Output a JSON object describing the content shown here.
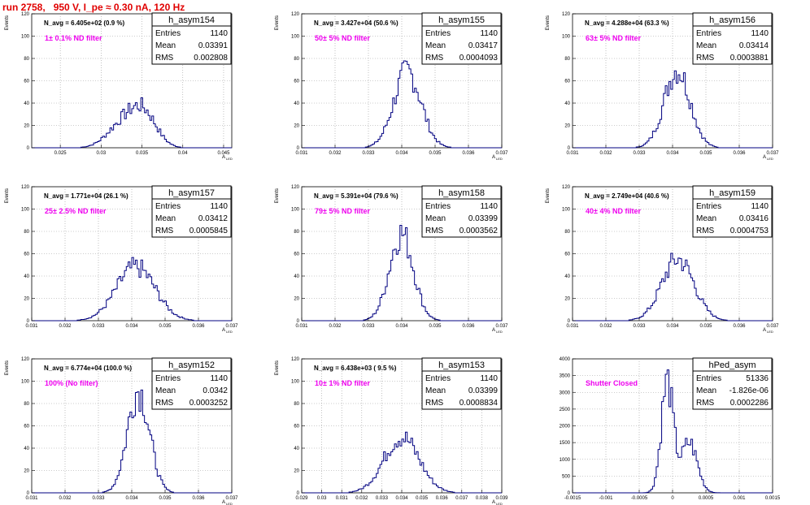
{
  "title": "run 2758,   950 V, I_pe ≈ 0.30 nA, 120 Hz",
  "chart_data": [
    {
      "type": "bar",
      "name": "h_asym154",
      "navg": "N_avg = 6.405e+02 (0.9 %)",
      "note": "1± 0.1% ND filter",
      "entries": "1140",
      "mean": "0.03391",
      "rms": "0.002808",
      "xlabel": "A",
      "xsub": "LED",
      "ylabel": "Events",
      "xlim": [
        0.0215,
        0.046
      ],
      "ylim": [
        0,
        120
      ],
      "xticks": [
        "0.025",
        "0.03",
        "0.035",
        "0.04",
        "0.045"
      ],
      "xtick_values": [
        0.025,
        0.03,
        0.035,
        0.04,
        0.045
      ],
      "yticks": [
        "0",
        "20",
        "40",
        "60",
        "80",
        "100",
        "120"
      ],
      "ytick_values": [
        0,
        20,
        40,
        60,
        80,
        100,
        120
      ],
      "peaks": [
        {
          "mu": 0.0325,
          "sigma": 0.0018,
          "amp": 20
        },
        {
          "mu": 0.0352,
          "sigma": 0.0016,
          "amp": 30
        }
      ],
      "nbins": 110
    },
    {
      "type": "bar",
      "name": "h_asym155",
      "navg": "N_avg = 3.427e+04 (50.6 %)",
      "note": "50± 5% ND filter",
      "entries": "1140",
      "mean": "0.03417",
      "rms": "0.0004093",
      "xlabel": "A",
      "xsub": "LED",
      "ylabel": "Events",
      "xlim": [
        0.031,
        0.037
      ],
      "ylim": [
        0,
        120
      ],
      "xticks": [
        "0.031",
        "0.032",
        "0.033",
        "0.034",
        "0.035",
        "0.036",
        "0.037"
      ],
      "xtick_values": [
        0.031,
        0.032,
        0.033,
        0.034,
        0.035,
        0.036,
        0.037
      ],
      "yticks": [
        "0",
        "20",
        "40",
        "60",
        "80",
        "100",
        "120"
      ],
      "ytick_values": [
        0,
        20,
        40,
        60,
        80,
        100,
        120
      ],
      "peaks": [
        {
          "mu": 0.03417,
          "sigma": 0.00041,
          "amp": 68
        }
      ],
      "nbins": 110
    },
    {
      "type": "bar",
      "name": "h_asym156",
      "navg": "N_avg = 4.288e+04 (63.3 %)",
      "note": "63± 5% ND filter",
      "entries": "1140",
      "mean": "0.03414",
      "rms": "0.0003881",
      "xlabel": "A",
      "xsub": "LED",
      "ylabel": "Events",
      "xlim": [
        0.031,
        0.037
      ],
      "ylim": [
        0,
        120
      ],
      "xticks": [
        "0.031",
        "0.032",
        "0.033",
        "0.034",
        "0.035",
        "0.036",
        "0.037"
      ],
      "xtick_values": [
        0.031,
        0.032,
        0.033,
        0.034,
        0.035,
        0.036,
        0.037
      ],
      "yticks": [
        "0",
        "20",
        "40",
        "60",
        "80",
        "100",
        "120"
      ],
      "ytick_values": [
        0,
        20,
        40,
        60,
        80,
        100,
        120
      ],
      "peaks": [
        {
          "mu": 0.03414,
          "sigma": 0.00039,
          "amp": 70
        }
      ],
      "nbins": 110
    },
    {
      "type": "bar",
      "name": "h_asym157",
      "navg": "N_avg = 1.771e+04 (26.1 %)",
      "note": "25± 2.5% ND filter",
      "entries": "1140",
      "mean": "0.03412",
      "rms": "0.0005845",
      "xlabel": "A",
      "xsub": "LED",
      "ylabel": "Events",
      "xlim": [
        0.031,
        0.037
      ],
      "ylim": [
        0,
        120
      ],
      "xticks": [
        "0.031",
        "0.032",
        "0.033",
        "0.034",
        "0.035",
        "0.036",
        "0.037"
      ],
      "xtick_values": [
        0.031,
        0.032,
        0.033,
        0.034,
        0.035,
        0.036,
        0.037
      ],
      "yticks": [
        "0",
        "20",
        "40",
        "60",
        "80",
        "100",
        "120"
      ],
      "ytick_values": [
        0,
        20,
        40,
        60,
        80,
        100,
        120
      ],
      "peaks": [
        {
          "mu": 0.03412,
          "sigma": 0.00058,
          "amp": 48
        }
      ],
      "nbins": 110
    },
    {
      "type": "bar",
      "name": "h_asym158",
      "navg": "N_avg = 5.391e+04 (79.6 %)",
      "note": "79± 5% ND filter",
      "entries": "1140",
      "mean": "0.03399",
      "rms": "0.0003562",
      "xlabel": "A",
      "xsub": "LED",
      "ylabel": "Events",
      "xlim": [
        0.031,
        0.037
      ],
      "ylim": [
        0,
        120
      ],
      "xticks": [
        "0.031",
        "0.032",
        "0.033",
        "0.034",
        "0.035",
        "0.036",
        "0.037"
      ],
      "xtick_values": [
        0.031,
        0.032,
        0.033,
        0.034,
        0.035,
        0.036,
        0.037
      ],
      "yticks": [
        "0",
        "20",
        "40",
        "60",
        "80",
        "100",
        "120"
      ],
      "ytick_values": [
        0,
        20,
        40,
        60,
        80,
        100,
        120
      ],
      "peaks": [
        {
          "mu": 0.03399,
          "sigma": 0.00036,
          "amp": 78
        }
      ],
      "nbins": 110
    },
    {
      "type": "bar",
      "name": "h_asym159",
      "navg": "N_avg = 2.749e+04 (40.6 %)",
      "note": "40± 4% ND filter",
      "entries": "1140",
      "mean": "0.03416",
      "rms": "0.0004753",
      "xlabel": "A",
      "xsub": "LED",
      "ylabel": "Events",
      "xlim": [
        0.031,
        0.037
      ],
      "ylim": [
        0,
        120
      ],
      "xticks": [
        "0.031",
        "0.032",
        "0.033",
        "0.034",
        "0.035",
        "0.036",
        "0.037"
      ],
      "xtick_values": [
        0.031,
        0.032,
        0.033,
        0.034,
        0.035,
        0.036,
        0.037
      ],
      "yticks": [
        "0",
        "20",
        "40",
        "60",
        "80",
        "100",
        "120"
      ],
      "ytick_values": [
        0,
        20,
        40,
        60,
        80,
        100,
        120
      ],
      "peaks": [
        {
          "mu": 0.03416,
          "sigma": 0.00048,
          "amp": 55
        }
      ],
      "nbins": 110
    },
    {
      "type": "bar",
      "name": "h_asym152",
      "navg": "N_avg = 6.774e+04 (100.0 %)",
      "note": "100% (No filter)",
      "entries": "1140",
      "mean": "0.0342",
      "rms": "0.0003252",
      "xlabel": "A",
      "xsub": "LED",
      "ylabel": "Events",
      "xlim": [
        0.031,
        0.037
      ],
      "ylim": [
        0,
        120
      ],
      "xticks": [
        "0.031",
        "0.032",
        "0.033",
        "0.034",
        "0.035",
        "0.036",
        "0.037"
      ],
      "xtick_values": [
        0.031,
        0.032,
        0.033,
        0.034,
        0.035,
        0.036,
        0.037
      ],
      "yticks": [
        "0",
        "20",
        "40",
        "60",
        "80",
        "100",
        "120"
      ],
      "ytick_values": [
        0,
        20,
        40,
        60,
        80,
        100,
        120
      ],
      "peaks": [
        {
          "mu": 0.0342,
          "sigma": 0.00033,
          "amp": 92
        }
      ],
      "nbins": 110
    },
    {
      "type": "bar",
      "name": "h_asym153",
      "navg": "N_avg = 6.438e+03 ( 9.5 %)",
      "note": "10± 1% ND filter",
      "entries": "1140",
      "mean": "0.03399",
      "rms": "0.0008834",
      "xlabel": "A",
      "xsub": "LED",
      "ylabel": "Events",
      "xlim": [
        0.029,
        0.039
      ],
      "ylim": [
        0,
        120
      ],
      "xticks": [
        "0.029",
        "0.03",
        "0.031",
        "0.032",
        "0.033",
        "0.034",
        "0.035",
        "0.036",
        "0.037",
        "0.038",
        "0.039"
      ],
      "xtick_values": [
        0.029,
        0.03,
        0.031,
        0.032,
        0.033,
        0.034,
        0.035,
        0.036,
        0.037,
        0.038,
        0.039
      ],
      "yticks": [
        "0",
        "20",
        "40",
        "60",
        "80",
        "100",
        "120"
      ],
      "ytick_values": [
        0,
        20,
        40,
        60,
        80,
        100,
        120
      ],
      "peaks": [
        {
          "mu": 0.03399,
          "sigma": 0.00088,
          "amp": 50
        }
      ],
      "nbins": 110
    },
    {
      "type": "bar",
      "name": "hPed_asym",
      "navg": "",
      "note": "Shutter Closed",
      "entries": "51336",
      "mean": "-1.826e-06",
      "rms": "0.0002286",
      "xlabel": "",
      "xsub": "",
      "ylabel": "",
      "xlim": [
        -0.0015,
        0.0015
      ],
      "ylim": [
        0,
        4000
      ],
      "xticks": [
        "-0.0015",
        "-0.001",
        "-0.0005",
        "0",
        "0.0005",
        "0.001",
        "0.0015"
      ],
      "xtick_values": [
        -0.0015,
        -0.001,
        -0.0005,
        0,
        0.0005,
        0.001,
        0.0015
      ],
      "yticks": [
        "0",
        "500",
        "1000",
        "1500",
        "2000",
        "2500",
        "3000",
        "3500",
        "4000"
      ],
      "ytick_values": [
        0,
        500,
        1000,
        1500,
        2000,
        2500,
        3000,
        3500,
        4000
      ],
      "peaks": [
        {
          "mu": -8e-05,
          "sigma": 9e-05,
          "amp": 3300
        },
        {
          "mu": 0.00025,
          "sigma": 0.00012,
          "amp": 1500
        }
      ],
      "nbins": 110
    }
  ]
}
